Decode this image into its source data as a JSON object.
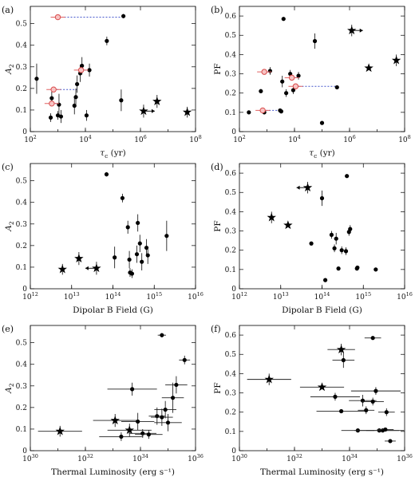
{
  "chart_data": [
    {
      "type": "scatter",
      "panel_label": "(a)",
      "xlabel": "τ_c (yr)",
      "ylabel": "A_2",
      "xscale": "log",
      "xlim": [
        100,
        100000000
      ],
      "ylim": [
        0,
        0.58
      ],
      "x_ticks": [
        "10^2",
        "10^4",
        "10^6",
        "10^8"
      ],
      "y_ticks": [
        "0",
        "0.1",
        "0.2",
        "0.3",
        "0.4",
        "0.5"
      ],
      "points": [
        {
          "x": 170,
          "y": 0.245,
          "yerr": 0.07,
          "marker": "circle"
        },
        {
          "x": 550,
          "y": 0.065,
          "yerr": 0.02,
          "marker": "circle"
        },
        {
          "x": 600,
          "y": 0.155,
          "yerr": 0.03,
          "marker": "circle"
        },
        {
          "x": 1100,
          "y": 0.125,
          "yerr": 0.05,
          "marker": "circle"
        },
        {
          "x": 1000,
          "y": 0.075,
          "yerr": 0.02,
          "marker": "circle"
        },
        {
          "x": 1300,
          "y": 0.07,
          "yerr": 0.03,
          "marker": "circle"
        },
        {
          "x": 4000,
          "y": 0.12,
          "yerr": 0.04,
          "marker": "circle"
        },
        {
          "x": 4500,
          "y": 0.16,
          "yerr": 0.04,
          "marker": "circle"
        },
        {
          "x": 5000,
          "y": 0.22,
          "yerr": 0.04,
          "marker": "circle"
        },
        {
          "x": 6500,
          "y": 0.27,
          "yerr": 0.04,
          "marker": "circle"
        },
        {
          "x": 7500,
          "y": 0.305,
          "yerr": 0.04,
          "marker": "circle"
        },
        {
          "x": 11000,
          "y": 0.075,
          "yerr": 0.025,
          "marker": "circle"
        },
        {
          "x": 14000,
          "y": 0.285,
          "yerr": 0.03,
          "marker": "circle"
        },
        {
          "x": 60000,
          "y": 0.42,
          "yerr": 0.02,
          "marker": "circle"
        },
        {
          "x": 200000,
          "y": 0.145,
          "yerr": 0.05,
          "marker": "circle"
        },
        {
          "x": 240000,
          "y": 0.535,
          "yerr": 0.01,
          "marker": "circle"
        },
        {
          "x": 1300000,
          "y": 0.095,
          "yerr": 0.03,
          "marker": "star"
        },
        {
          "x": 4000000,
          "y": 0.14,
          "yerr": 0.03,
          "marker": "star"
        },
        {
          "x": 50000000,
          "y": 0.09,
          "yerr": 0.025,
          "marker": "star"
        },
        {
          "x": 1000,
          "y": 0.53,
          "marker": "open-circle"
        },
        {
          "x": 700,
          "y": 0.195,
          "marker": "open-circle"
        },
        {
          "x": 600,
          "y": 0.13,
          "marker": "open-circle"
        },
        {
          "x": 7000,
          "y": 0.285,
          "marker": "open-circle"
        }
      ]
    },
    {
      "type": "scatter",
      "panel_label": "(b)",
      "xlabel": "τ_c (yr)",
      "ylabel": "PF",
      "xscale": "log",
      "xlim": [
        100,
        100000000
      ],
      "ylim": [
        0,
        0.65
      ],
      "x_ticks": [
        "10^2",
        "10^4",
        "10^6",
        "10^8"
      ],
      "y_ticks": [
        "0",
        "0.1",
        "0.2",
        "0.3",
        "0.4",
        "0.5",
        "0.6"
      ],
      "points": [
        {
          "x": 220,
          "y": 0.1,
          "yerr": 0.01,
          "marker": "circle"
        },
        {
          "x": 600,
          "y": 0.21,
          "yerr": 0.01,
          "marker": "circle"
        },
        {
          "x": 800,
          "y": 0.1,
          "yerr": 0.01,
          "marker": "circle"
        },
        {
          "x": 1300,
          "y": 0.315,
          "yerr": 0.02,
          "marker": "circle"
        },
        {
          "x": 3000,
          "y": 0.11,
          "yerr": 0.01,
          "marker": "circle"
        },
        {
          "x": 3300,
          "y": 0.105,
          "yerr": 0.01,
          "marker": "circle"
        },
        {
          "x": 3600,
          "y": 0.26,
          "yerr": 0.03,
          "marker": "circle"
        },
        {
          "x": 4000,
          "y": 0.585,
          "yerr": 0.01,
          "marker": "circle"
        },
        {
          "x": 5000,
          "y": 0.2,
          "yerr": 0.02,
          "marker": "circle"
        },
        {
          "x": 7000,
          "y": 0.3,
          "yerr": 0.02,
          "marker": "circle"
        },
        {
          "x": 9000,
          "y": 0.215,
          "yerr": 0.02,
          "marker": "circle"
        },
        {
          "x": 14000,
          "y": 0.29,
          "yerr": 0.02,
          "marker": "circle"
        },
        {
          "x": 55000,
          "y": 0.47,
          "yerr": 0.04,
          "marker": "circle"
        },
        {
          "x": 100000,
          "y": 0.045,
          "yerr": 0.01,
          "marker": "circle"
        },
        {
          "x": 350000,
          "y": 0.23,
          "yerr": 0.01,
          "marker": "circle"
        },
        {
          "x": 1200000,
          "y": 0.525,
          "yerr": 0.03,
          "marker": "star"
        },
        {
          "x": 5000000,
          "y": 0.33,
          "yerr": 0.01,
          "marker": "star"
        },
        {
          "x": 50000000,
          "y": 0.37,
          "yerr": 0.03,
          "marker": "star"
        },
        {
          "x": 800,
          "y": 0.31,
          "marker": "open-circle"
        },
        {
          "x": 700,
          "y": 0.11,
          "marker": "open-circle"
        },
        {
          "x": 8000,
          "y": 0.28,
          "marker": "open-circle"
        },
        {
          "x": 11000,
          "y": 0.235,
          "marker": "open-circle"
        }
      ]
    },
    {
      "type": "scatter",
      "panel_label": "(c)",
      "xlabel": "Dipolar B Field (G)",
      "ylabel": "A_2",
      "xscale": "log",
      "xlim": [
        1000000000000,
        10000000000000000
      ],
      "ylim": [
        0,
        0.58
      ],
      "x_ticks": [
        "10^12",
        "10^13",
        "10^14",
        "10^15",
        "10^16"
      ],
      "y_ticks": [
        "0",
        "0.1",
        "0.2",
        "0.3",
        "0.4",
        "0.5"
      ],
      "points": [
        {
          "x": 70000000000000,
          "y": 0.53,
          "yerr": 0.01,
          "marker": "circle"
        },
        {
          "x": 170000000000000,
          "y": 0.42,
          "yerr": 0.02,
          "marker": "circle"
        },
        {
          "x": 230000000000000,
          "y": 0.285,
          "yerr": 0.03,
          "marker": "circle"
        },
        {
          "x": 400000000000000,
          "y": 0.305,
          "yerr": 0.04,
          "marker": "circle"
        },
        {
          "x": 110000000000000,
          "y": 0.145,
          "yerr": 0.05,
          "marker": "circle"
        },
        {
          "x": 250000000000000,
          "y": 0.135,
          "yerr": 0.04,
          "marker": "circle"
        },
        {
          "x": 260000000000000,
          "y": 0.075,
          "yerr": 0.02,
          "marker": "circle"
        },
        {
          "x": 290000000000000,
          "y": 0.07,
          "yerr": 0.02,
          "marker": "circle"
        },
        {
          "x": 380000000000000,
          "y": 0.16,
          "yerr": 0.04,
          "marker": "circle"
        },
        {
          "x": 450000000000000,
          "y": 0.21,
          "yerr": 0.04,
          "marker": "circle"
        },
        {
          "x": 500000000000000,
          "y": 0.125,
          "yerr": 0.04,
          "marker": "circle"
        },
        {
          "x": 650000000000000,
          "y": 0.19,
          "yerr": 0.04,
          "marker": "circle"
        },
        {
          "x": 700000000000000,
          "y": 0.155,
          "yerr": 0.04,
          "marker": "circle"
        },
        {
          "x": 2000000000000000,
          "y": 0.245,
          "yerr": 0.07,
          "marker": "circle"
        },
        {
          "x": 6000000000000,
          "y": 0.09,
          "yerr": 0.025,
          "marker": "star"
        },
        {
          "x": 15000000000000,
          "y": 0.14,
          "yerr": 0.03,
          "marker": "star"
        },
        {
          "x": 40000000000000,
          "y": 0.095,
          "yerr": 0.03,
          "marker": "star"
        }
      ]
    },
    {
      "type": "scatter",
      "panel_label": "(d)",
      "xlabel": "Dipolar B Field (G)",
      "ylabel": "PF",
      "xscale": "log",
      "xlim": [
        1000000000000,
        10000000000000000
      ],
      "ylim": [
        0,
        0.65
      ],
      "x_ticks": [
        "10^12",
        "10^13",
        "10^14",
        "10^15",
        "10^16"
      ],
      "y_ticks": [
        "0",
        "0.1",
        "0.2",
        "0.3",
        "0.4",
        "0.5",
        "0.6"
      ],
      "points": [
        {
          "x": 45000000000000,
          "y": 0.525,
          "yerr": 0.03,
          "marker": "star"
        },
        {
          "x": 6000000000000,
          "y": 0.37,
          "yerr": 0.03,
          "marker": "star"
        },
        {
          "x": 15000000000000,
          "y": 0.33,
          "yerr": 0.01,
          "marker": "star"
        },
        {
          "x": 55000000000000,
          "y": 0.235,
          "yerr": 0.01,
          "marker": "circle"
        },
        {
          "x": 100000000000000,
          "y": 0.47,
          "yerr": 0.04,
          "marker": "circle"
        },
        {
          "x": 120000000000000,
          "y": 0.045,
          "yerr": 0.01,
          "marker": "circle"
        },
        {
          "x": 170000000000000,
          "y": 0.28,
          "yerr": 0.02,
          "marker": "circle"
        },
        {
          "x": 200000000000000,
          "y": 0.21,
          "yerr": 0.02,
          "marker": "circle"
        },
        {
          "x": 220000000000000,
          "y": 0.26,
          "yerr": 0.03,
          "marker": "circle"
        },
        {
          "x": 250000000000000,
          "y": 0.105,
          "yerr": 0.01,
          "marker": "circle"
        },
        {
          "x": 300000000000000,
          "y": 0.2,
          "yerr": 0.02,
          "marker": "circle"
        },
        {
          "x": 380000000000000,
          "y": 0.195,
          "yerr": 0.02,
          "marker": "circle"
        },
        {
          "x": 400000000000000,
          "y": 0.585,
          "yerr": 0.01,
          "marker": "circle"
        },
        {
          "x": 450000000000000,
          "y": 0.295,
          "yerr": 0.02,
          "marker": "circle"
        },
        {
          "x": 480000000000000,
          "y": 0.31,
          "yerr": 0.02,
          "marker": "circle"
        },
        {
          "x": 700000000000000,
          "y": 0.105,
          "yerr": 0.01,
          "marker": "circle"
        },
        {
          "x": 720000000000000,
          "y": 0.11,
          "yerr": 0.01,
          "marker": "circle"
        },
        {
          "x": 2000000000000000,
          "y": 0.1,
          "yerr": 0.01,
          "marker": "circle"
        }
      ]
    },
    {
      "type": "scatter",
      "panel_label": "(e)",
      "xlabel": "Thermal Luminosity (erg s⁻¹)",
      "ylabel": "A_2",
      "xscale": "log",
      "xlim": [
        1e+30,
        1e+36
      ],
      "ylim": [
        0,
        0.58
      ],
      "x_ticks": [
        "10^30",
        "10^32",
        "10^34",
        "10^36"
      ],
      "y_ticks": [
        "0",
        "0.1",
        "0.2",
        "0.3",
        "0.4",
        "0.5"
      ],
      "points": [
        {
          "x": 1.2e+31,
          "y": 0.09,
          "yerr": 0.025,
          "xerr_log": 0.8,
          "marker": "star"
        },
        {
          "x": 1.2e+33,
          "y": 0.14,
          "yerr": 0.03,
          "xerr_log": 0.8,
          "marker": "star"
        },
        {
          "x": 4e+33,
          "y": 0.095,
          "yerr": 0.03,
          "xerr_log": 0.8,
          "marker": "star"
        },
        {
          "x": 2e+33,
          "y": 0.065,
          "yerr": 0.02,
          "xerr_log": 0.8,
          "marker": "circle"
        },
        {
          "x": 5e+33,
          "y": 0.285,
          "yerr": 0.03,
          "xerr_log": 0.9,
          "marker": "circle"
        },
        {
          "x": 8e+33,
          "y": 0.135,
          "yerr": 0.04,
          "xerr_log": 0.6,
          "marker": "circle"
        },
        {
          "x": 1.2e+34,
          "y": 0.08,
          "yerr": 0.02,
          "xerr_log": 0.5,
          "marker": "circle"
        },
        {
          "x": 2e+34,
          "y": 0.075,
          "yerr": 0.02,
          "xerr_log": 0.5,
          "marker": "circle"
        },
        {
          "x": 4e+34,
          "y": 0.16,
          "yerr": 0.04,
          "xerr_log": 0.3,
          "marker": "circle"
        },
        {
          "x": 6e+34,
          "y": 0.155,
          "yerr": 0.04,
          "xerr_log": 0.4,
          "marker": "circle"
        },
        {
          "x": 8e+34,
          "y": 0.19,
          "yerr": 0.04,
          "xerr_log": 0.4,
          "marker": "circle"
        },
        {
          "x": 1e+35,
          "y": 0.13,
          "yerr": 0.04,
          "xerr_log": 0.5,
          "marker": "circle"
        },
        {
          "x": 1.5e+35,
          "y": 0.245,
          "yerr": 0.07,
          "xerr_log": 0.4,
          "marker": "circle"
        },
        {
          "x": 2e+35,
          "y": 0.305,
          "yerr": 0.04,
          "xerr_log": 0.4,
          "marker": "circle"
        },
        {
          "x": 6e+34,
          "y": 0.535,
          "yerr": 0.01,
          "xerr_log": 0.15,
          "marker": "circle"
        },
        {
          "x": 4e+35,
          "y": 0.42,
          "yerr": 0.02,
          "xerr_log": 0.2,
          "marker": "circle"
        }
      ]
    },
    {
      "type": "scatter",
      "panel_label": "(f)",
      "xlabel": "Thermal Luminosity (erg s⁻¹)",
      "ylabel": "PF",
      "xscale": "log",
      "xlim": [
        1e+30,
        1e+36
      ],
      "ylim": [
        0,
        0.65
      ],
      "x_ticks": [
        "10^30",
        "10^32",
        "10^34",
        "10^36"
      ],
      "y_ticks": [
        "0",
        "0.1",
        "0.2",
        "0.3",
        "0.4",
        "0.5",
        "0.6"
      ],
      "points": [
        {
          "x": 1.2e+31,
          "y": 0.37,
          "yerr": 0.03,
          "xerr_log": 0.8,
          "marker": "star"
        },
        {
          "x": 1e+33,
          "y": 0.33,
          "yerr": 0.01,
          "xerr_log": 0.8,
          "marker": "star"
        },
        {
          "x": 5e+33,
          "y": 0.525,
          "yerr": 0.03,
          "xerr_log": 0.5,
          "marker": "star"
        },
        {
          "x": 6e+33,
          "y": 0.47,
          "yerr": 0.04,
          "xerr_log": 0.4,
          "marker": "circle"
        },
        {
          "x": 3e+33,
          "y": 0.28,
          "yerr": 0.02,
          "xerr_log": 0.9,
          "marker": "circle"
        },
        {
          "x": 5e+33,
          "y": 0.205,
          "yerr": 0.01,
          "xerr_log": 0.9,
          "marker": "circle"
        },
        {
          "x": 2e+34,
          "y": 0.105,
          "yerr": 0.01,
          "xerr_log": 0.6,
          "marker": "circle"
        },
        {
          "x": 3e+34,
          "y": 0.26,
          "yerr": 0.03,
          "xerr_log": 0.5,
          "marker": "circle"
        },
        {
          "x": 4e+34,
          "y": 0.21,
          "yerr": 0.02,
          "xerr_log": 0.3,
          "marker": "circle"
        },
        {
          "x": 7e+34,
          "y": 0.255,
          "yerr": 0.02,
          "xerr_log": 0.4,
          "marker": "circle"
        },
        {
          "x": 7e+34,
          "y": 0.585,
          "yerr": 0.01,
          "xerr_log": 0.3,
          "marker": "circle"
        },
        {
          "x": 9e+34,
          "y": 0.31,
          "yerr": 0.02,
          "xerr_log": 0.9,
          "marker": "circle"
        },
        {
          "x": 1.2e+35,
          "y": 0.105,
          "yerr": 0.01,
          "xerr_log": 0.9,
          "marker": "circle"
        },
        {
          "x": 1.6e+35,
          "y": 0.105,
          "yerr": 0.01,
          "xerr_log": 0.6,
          "marker": "circle"
        },
        {
          "x": 2e+35,
          "y": 0.11,
          "yerr": 0.01,
          "xerr_log": 0.3,
          "marker": "circle"
        },
        {
          "x": 2.2e+35,
          "y": 0.2,
          "yerr": 0.02,
          "xerr_log": 0.3,
          "marker": "circle"
        },
        {
          "x": 3e+35,
          "y": 0.05,
          "yerr": 0.01,
          "xerr_log": 0.2,
          "marker": "circle"
        }
      ]
    }
  ],
  "colors": {
    "marker": "#000000",
    "highlight_fill": "#f7c4c4",
    "highlight_stroke": "#d94b4b",
    "connector": "#4455cc",
    "highlight_errorbar": "#e06060"
  }
}
